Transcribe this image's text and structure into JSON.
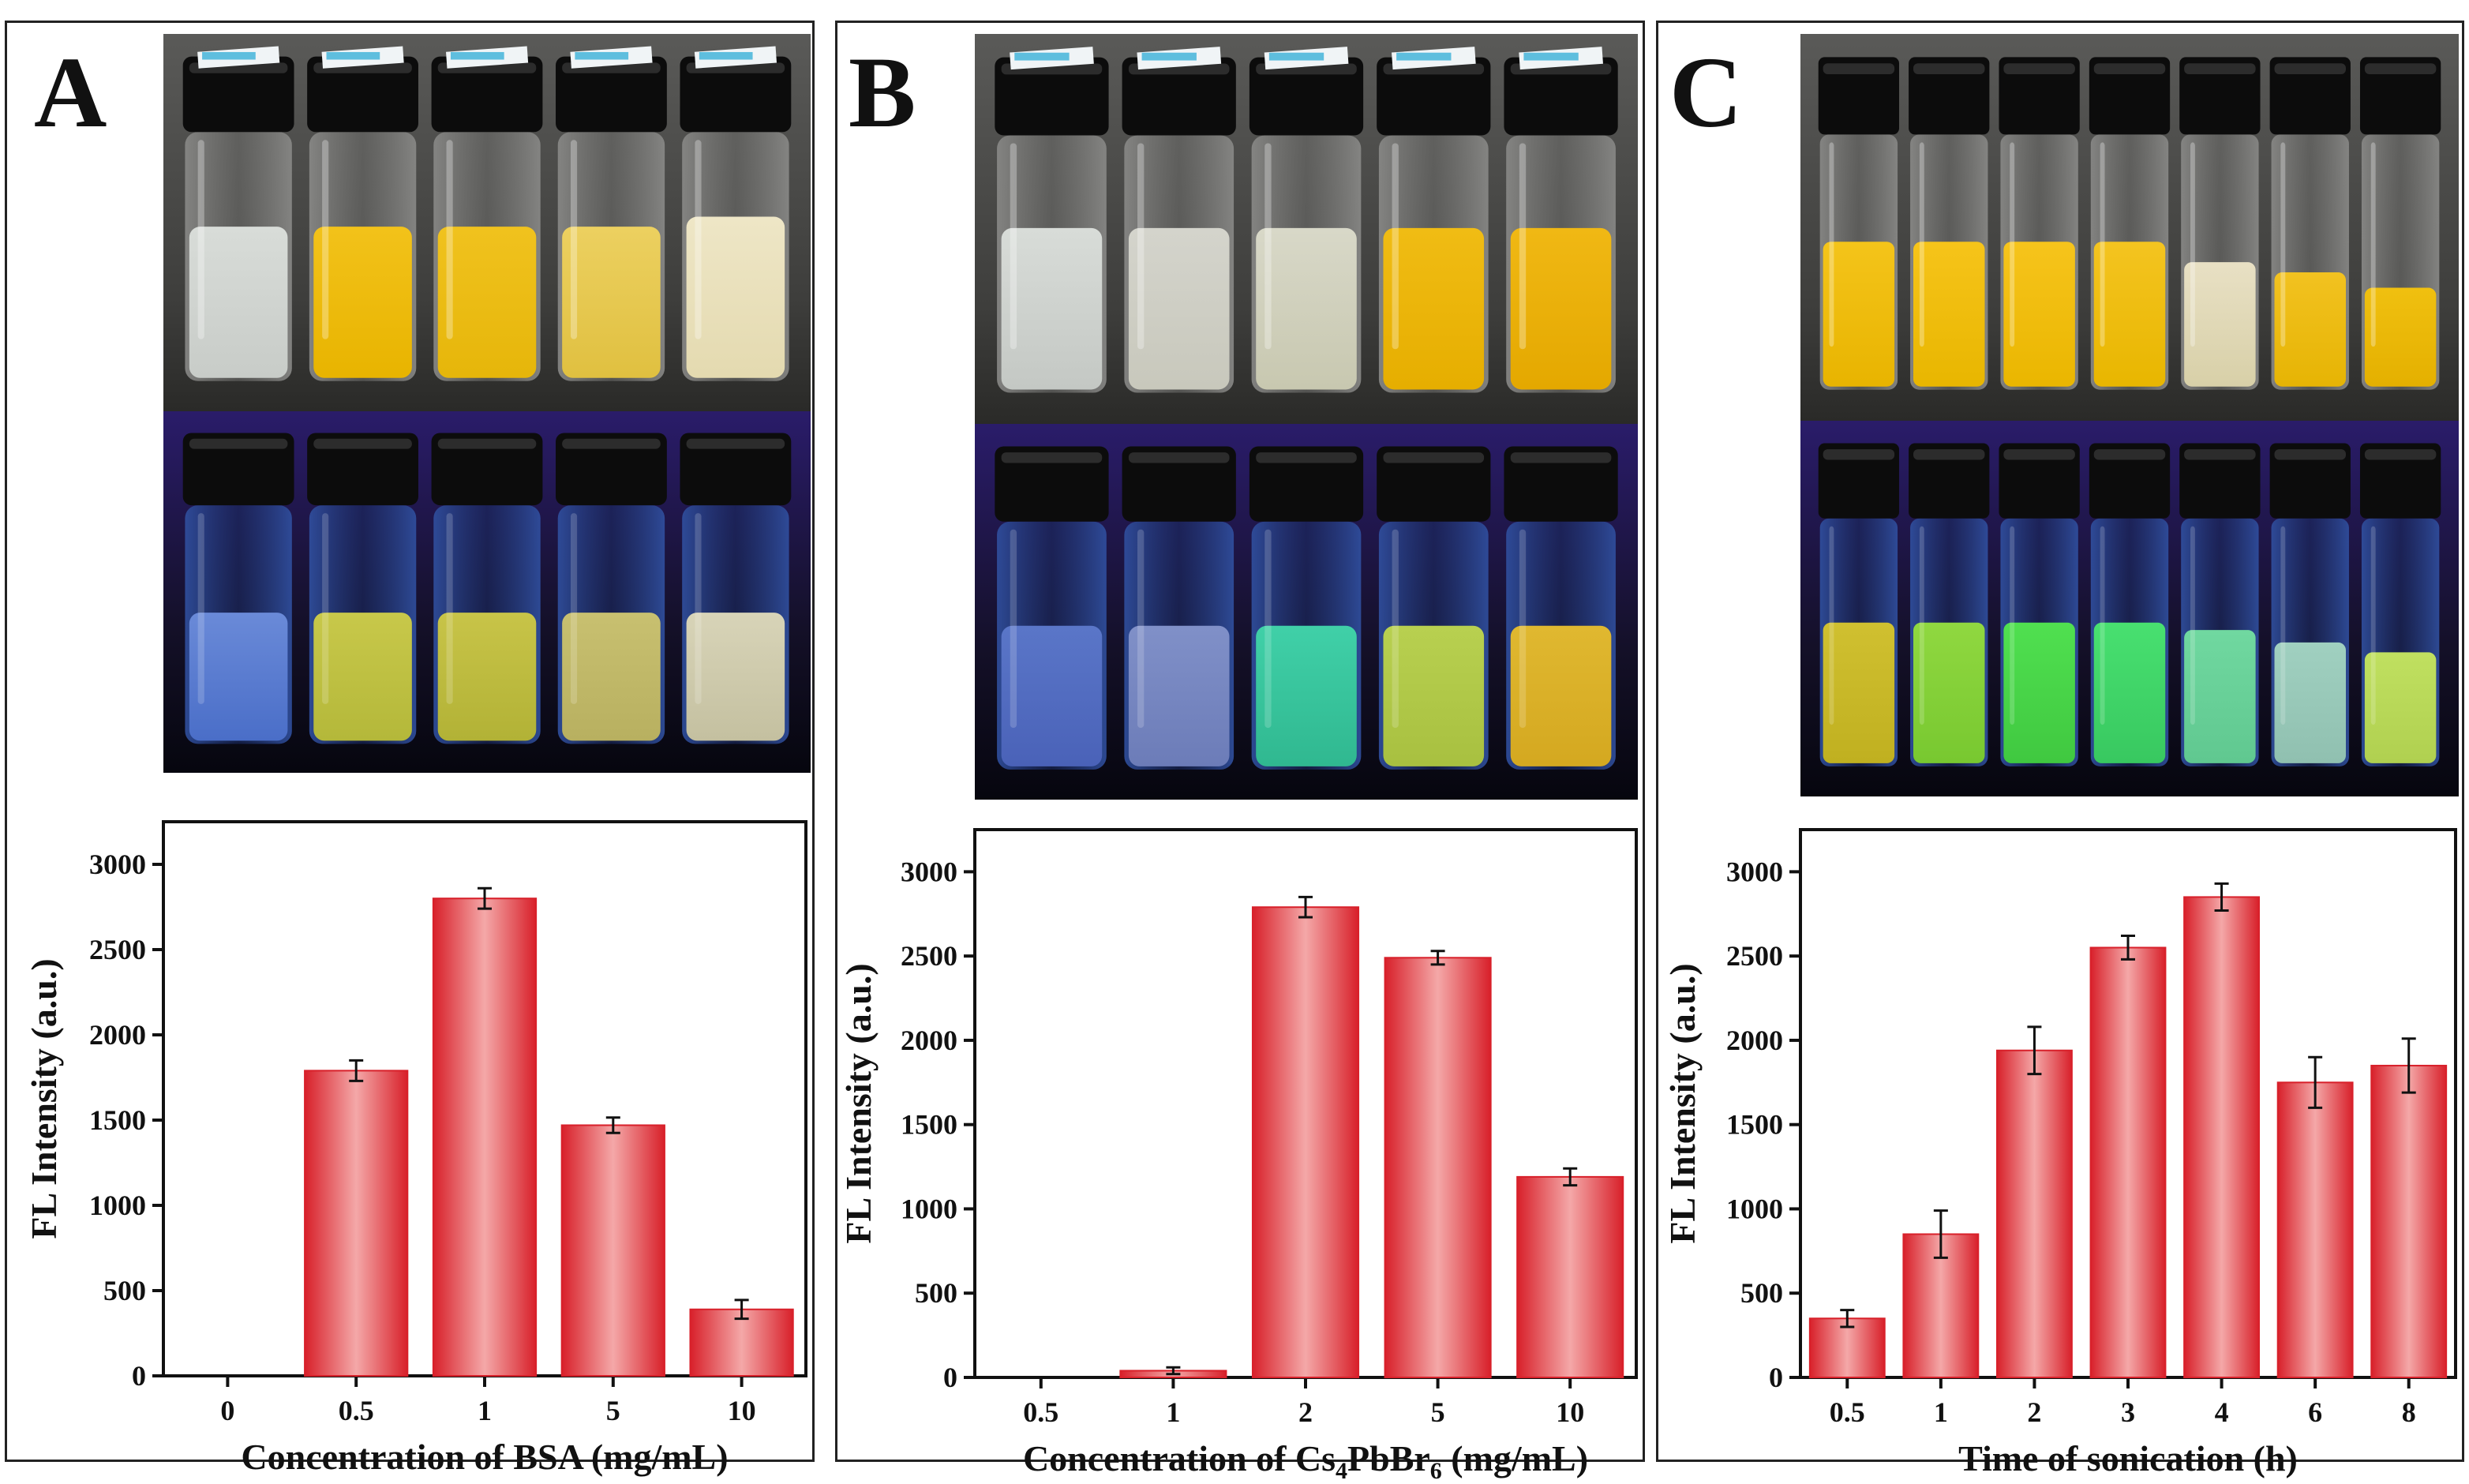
{
  "panels": [
    {
      "letter": "A",
      "vial_count": 5
    },
    {
      "letter": "B",
      "vial_count": 5
    },
    {
      "letter": "C",
      "vial_count": 7
    }
  ],
  "colors": {
    "bar_edge": "#d8202a",
    "bar_light": "#f4a8a8",
    "photo_bg_top": "#5a5a5a",
    "photo_bg_uv": "#0a0a1a"
  },
  "chart_data": [
    {
      "type": "bar",
      "categories": [
        "0",
        "0.5",
        "1",
        "5",
        "10"
      ],
      "values": [
        0,
        1790,
        2800,
        1470,
        390
      ],
      "errors": [
        0,
        60,
        60,
        45,
        55
      ],
      "xlabel": "Concentration of BSA (mg/mL)",
      "xlabel_parts": {
        "main": "Concentration of BSA (mg/mL)",
        "sub": "",
        "tail": ""
      },
      "ylabel": "FL Intensity (a.u.)",
      "ylim": [
        0,
        3250
      ],
      "yticks": [
        0,
        500,
        1000,
        1500,
        2000,
        2500,
        3000
      ]
    },
    {
      "type": "bar",
      "categories": [
        "0.5",
        "1",
        "2",
        "5",
        "10"
      ],
      "values": [
        0,
        40,
        2790,
        2490,
        1190
      ],
      "errors": [
        0,
        20,
        60,
        40,
        50
      ],
      "xlabel": "Concentration of Cs4PbBr6 (mg/mL)",
      "xlabel_parts": {
        "main": "Concentration of Cs",
        "sub": "4",
        "mid": "PbBr",
        "sub2": "6",
        "tail": " (mg/mL)"
      },
      "ylabel": "FL Intensity (a.u.)",
      "ylim": [
        0,
        3250
      ],
      "yticks": [
        0,
        500,
        1000,
        1500,
        2000,
        2500,
        3000
      ]
    },
    {
      "type": "bar",
      "categories": [
        "0.5",
        "1",
        "2",
        "3",
        "4",
        "6",
        "8"
      ],
      "values": [
        350,
        850,
        1940,
        2550,
        2850,
        1750,
        1850
      ],
      "errors": [
        50,
        140,
        140,
        70,
        80,
        150,
        160
      ],
      "xlabel": "Time of sonication (h)",
      "xlabel_parts": {
        "main": "Time of sonication (h)",
        "sub": "",
        "tail": ""
      },
      "ylabel": "FL Intensity (a.u.)",
      "ylim": [
        0,
        3250
      ],
      "yticks": [
        0,
        500,
        1000,
        1500,
        2000,
        2500,
        3000
      ]
    }
  ]
}
